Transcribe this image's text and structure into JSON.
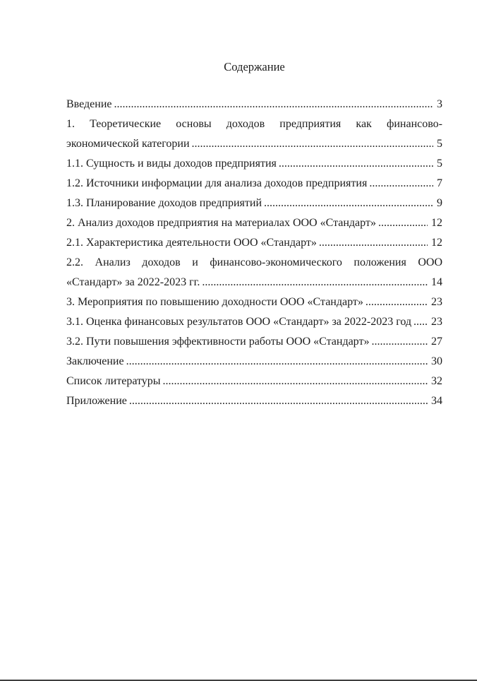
{
  "colors": {
    "text": "#1c1c1c",
    "page_background": "#ffffff",
    "page_edge": "#3f3f3f"
  },
  "document": {
    "title": "Содержание"
  },
  "toc": [
    {
      "text": "Введение",
      "page": "3"
    },
    {
      "line1": "1. Теоретические основы доходов предприятия как финансово-",
      "line2": "экономической категории",
      "page": "5"
    },
    {
      "text": "1.1. Сущность и виды доходов предприятия",
      "page": "5"
    },
    {
      "text": "1.2. Источники информации для анализа доходов предприятия",
      "page": "7"
    },
    {
      "text": "1.3. Планирование доходов предприятий",
      "page": "9"
    },
    {
      "text": "2. Анализ доходов предприятия на материалах ООО «Стандарт»",
      "page": "12"
    },
    {
      "text": "2.1. Характеристика деятельности ООО «Стандарт»",
      "page": "12"
    },
    {
      "line1": "2.2. Анализ доходов и финансово-экономического положения ООО",
      "line2": "«Стандарт» за 2022-2023 гг.",
      "page": "14"
    },
    {
      "text": "3. Мероприятия по повышению доходности ООО «Стандарт»",
      "page": "23"
    },
    {
      "text": "3.1. Оценка финансовых результатов ООО «Стандарт» за 2022-2023 год",
      "page": "23"
    },
    {
      "text": "3.2. Пути повышения эффективности работы ООО «Стандарт»",
      "page": "27"
    },
    {
      "text": "Заключение",
      "page": "30"
    },
    {
      "text": "Список литературы",
      "page": "32"
    },
    {
      "text": "Приложение",
      "page": "34"
    }
  ]
}
